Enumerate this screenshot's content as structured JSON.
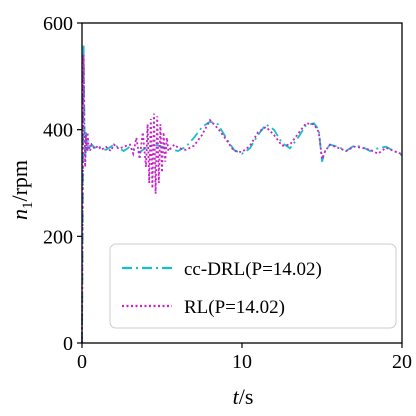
{
  "chart_data": {
    "type": "line",
    "xlabel": "t/s",
    "ylabel": "n1/rpm",
    "xlim": [
      0,
      20
    ],
    "ylim": [
      0,
      600
    ],
    "xticks": [
      "0",
      "10",
      "20"
    ],
    "yticks": [
      "0",
      "200",
      "400",
      "600"
    ],
    "grid": false,
    "legend_position": "lower-right",
    "series": [
      {
        "name": "cc-DRL(P=14.02)",
        "color": "#17becf",
        "style": "dashdot",
        "x": [
          0,
          0.05,
          0.1,
          0.15,
          0.2,
          0.25,
          0.3,
          0.35,
          0.4,
          0.5,
          0.6,
          0.8,
          1.0,
          1.2,
          1.5,
          1.8,
          2.0,
          2.3,
          2.6,
          3.0,
          3.3,
          3.6,
          4.0,
          4.3,
          4.5,
          4.8,
          5.0,
          5.5,
          6.0,
          6.5,
          7.0,
          7.5,
          8.0,
          8.5,
          9.0,
          9.5,
          10.0,
          10.5,
          11.0,
          11.5,
          12.0,
          12.5,
          13.0,
          13.5,
          14.0,
          14.5,
          14.8,
          15.0,
          15.2,
          15.5,
          16.0,
          16.5,
          17.0,
          17.5,
          18.0,
          18.5,
          19.0,
          19.5,
          20.0
        ],
        "values": [
          0,
          250,
          560,
          420,
          340,
          395,
          375,
          360,
          380,
          368,
          372,
          366,
          370,
          365,
          362,
          368,
          372,
          366,
          360,
          368,
          362,
          358,
          366,
          370,
          372,
          370,
          368,
          364,
          360,
          368,
          385,
          405,
          415,
          410,
          385,
          362,
          355,
          365,
          390,
          410,
          400,
          375,
          365,
          385,
          408,
          412,
          400,
          340,
          360,
          372,
          368,
          360,
          370,
          368,
          360,
          365,
          368,
          360,
          352
        ]
      },
      {
        "name": "RL(P=14.02)",
        "color": "#c81fc8",
        "style": "dotted",
        "x": [
          0,
          0.05,
          0.1,
          0.15,
          0.2,
          0.25,
          0.3,
          0.35,
          0.4,
          0.5,
          0.6,
          0.8,
          1.0,
          1.2,
          1.5,
          1.8,
          2.0,
          2.3,
          2.6,
          3.0,
          3.2,
          3.4,
          3.6,
          3.8,
          4.0,
          4.1,
          4.2,
          4.3,
          4.4,
          4.5,
          4.6,
          4.7,
          4.8,
          4.9,
          5.0,
          5.1,
          5.2,
          5.3,
          5.4,
          5.6,
          5.8,
          6.0,
          6.5,
          7.0,
          7.5,
          8.0,
          8.5,
          9.0,
          9.5,
          10.0,
          10.5,
          11.0,
          11.5,
          12.0,
          12.5,
          13.0,
          13.5,
          14.0,
          14.5,
          14.8,
          15.0,
          15.2,
          15.5,
          16.0,
          16.5,
          17.0,
          17.5,
          18.0,
          18.5,
          19.0,
          19.5,
          20.0
        ],
        "values": [
          0,
          300,
          540,
          400,
          330,
          390,
          360,
          395,
          370,
          360,
          372,
          364,
          370,
          362,
          368,
          360,
          372,
          364,
          368,
          372,
          355,
          385,
          345,
          395,
          330,
          410,
          300,
          420,
          290,
          430,
          280,
          425,
          300,
          410,
          320,
          395,
          340,
          385,
          360,
          368,
          372,
          366,
          362,
          370,
          390,
          418,
          402,
          382,
          360,
          358,
          370,
          395,
          405,
          390,
          370,
          372,
          392,
          412,
          410,
          395,
          345,
          360,
          372,
          366,
          360,
          368,
          366,
          362,
          355,
          366,
          360,
          354
        ]
      }
    ]
  }
}
